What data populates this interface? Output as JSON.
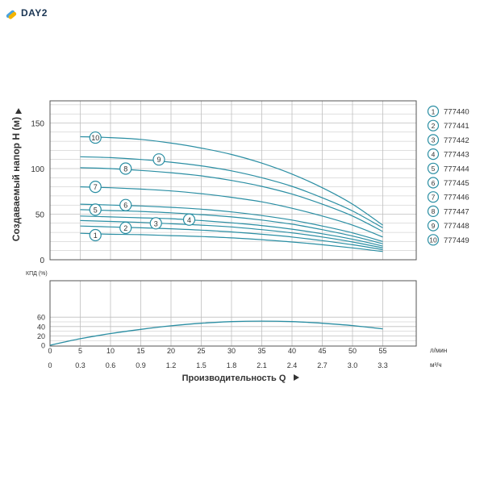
{
  "brand": {
    "logo_text": "DAY2"
  },
  "chart_data": [
    {
      "type": "line",
      "ylabel": "Создаваемый напор H (м)",
      "yticks": [
        0,
        50,
        100,
        150
      ],
      "ylim": [
        0,
        170
      ],
      "x": [
        5,
        10,
        15,
        20,
        25,
        30,
        35,
        40,
        45,
        50,
        55
      ],
      "series": [
        {
          "name": "1",
          "values": [
            29,
            28,
            27.5,
            26.5,
            25.5,
            24,
            22,
            19.5,
            16.5,
            13,
            9
          ]
        },
        {
          "name": "2",
          "values": [
            37,
            36,
            35,
            34,
            32.5,
            30.5,
            28,
            25,
            21,
            16.5,
            11
          ]
        },
        {
          "name": "3",
          "values": [
            43,
            42,
            41,
            39.5,
            38,
            36,
            33,
            29.5,
            25,
            19.5,
            13
          ]
        },
        {
          "name": "4",
          "values": [
            48,
            47,
            46,
            45,
            43,
            40.5,
            37.5,
            33.5,
            28.5,
            22.5,
            15
          ]
        },
        {
          "name": "5",
          "values": [
            55,
            54,
            53,
            51.5,
            49.5,
            47,
            43.5,
            39,
            33,
            26,
            17.5
          ]
        },
        {
          "name": "6",
          "values": [
            61,
            60,
            59,
            57.5,
            55.5,
            52.5,
            48.5,
            43.5,
            37,
            29.5,
            20
          ]
        },
        {
          "name": "7",
          "values": [
            80,
            79,
            77.5,
            75.5,
            72.5,
            68.5,
            63.5,
            56.5,
            48,
            38,
            25
          ]
        },
        {
          "name": "8",
          "values": [
            101,
            100,
            98,
            95.5,
            92,
            87,
            80.5,
            72,
            61,
            48,
            31
          ]
        },
        {
          "name": "9",
          "values": [
            113,
            112,
            110,
            107,
            103,
            97.5,
            90,
            80.5,
            68,
            53.5,
            35
          ]
        },
        {
          "name": "10",
          "values": [
            135,
            134,
            132,
            128,
            122.5,
            115.5,
            106,
            94,
            79,
            61,
            38
          ]
        }
      ],
      "curve_labels": [
        {
          "text": "10",
          "x": 7.5,
          "y": 134
        },
        {
          "text": "9",
          "x": 18,
          "y": 110
        },
        {
          "text": "8",
          "x": 12.5,
          "y": 100
        },
        {
          "text": "7",
          "x": 7.5,
          "y": 80
        },
        {
          "text": "6",
          "x": 12.5,
          "y": 60
        },
        {
          "text": "5",
          "x": 7.5,
          "y": 55
        },
        {
          "text": "4",
          "x": 23,
          "y": 44
        },
        {
          "text": "3",
          "x": 17.5,
          "y": 40
        },
        {
          "text": "2",
          "x": 12.5,
          "y": 35
        },
        {
          "text": "1",
          "x": 7.5,
          "y": 27
        }
      ],
      "legend": {
        "position": "right",
        "entries": [
          {
            "num": "1",
            "code": "777440"
          },
          {
            "num": "2",
            "code": "777441"
          },
          {
            "num": "3",
            "code": "777442"
          },
          {
            "num": "4",
            "code": "777443"
          },
          {
            "num": "5",
            "code": "777444"
          },
          {
            "num": "6",
            "code": "777445"
          },
          {
            "num": "7",
            "code": "777446"
          },
          {
            "num": "8",
            "code": "777447"
          },
          {
            "num": "9",
            "code": "777448"
          },
          {
            "num": "10",
            "code": "777449"
          }
        ]
      },
      "grid": true
    },
    {
      "type": "line",
      "ylabel": "КПД (%)",
      "yticks": [
        0,
        20,
        40,
        60
      ],
      "ylim": [
        0,
        70
      ],
      "xlabel": "Производительность Q",
      "x_lpm_ticks": [
        "0",
        "5",
        "10",
        "15",
        "20",
        "25",
        "30",
        "35",
        "40",
        "45",
        "50",
        "55"
      ],
      "x_m3h_ticks": [
        "0",
        "0.3",
        "0.6",
        "0.9",
        "1.2",
        "1.5",
        "1.8",
        "2.1",
        "2.4",
        "2.7",
        "3.0",
        "3.3"
      ],
      "unit_lpm": "л/мин",
      "unit_m3h": "м³/ч",
      "x": [
        0,
        5,
        10,
        15,
        20,
        25,
        30,
        35,
        40,
        45,
        50,
        55
      ],
      "series": [
        {
          "values": [
            0,
            14,
            25,
            34,
            41.5,
            47,
            50.5,
            51.5,
            50.5,
            47,
            42,
            35
          ]
        }
      ],
      "grid": true
    }
  ],
  "colors": {
    "curve": "#2a8ea3",
    "grid": "#bfbfbf",
    "frame": "#555555",
    "text": "#333333",
    "logo_accent": "#f4b400",
    "logo_accent2": "#4aa3df"
  }
}
